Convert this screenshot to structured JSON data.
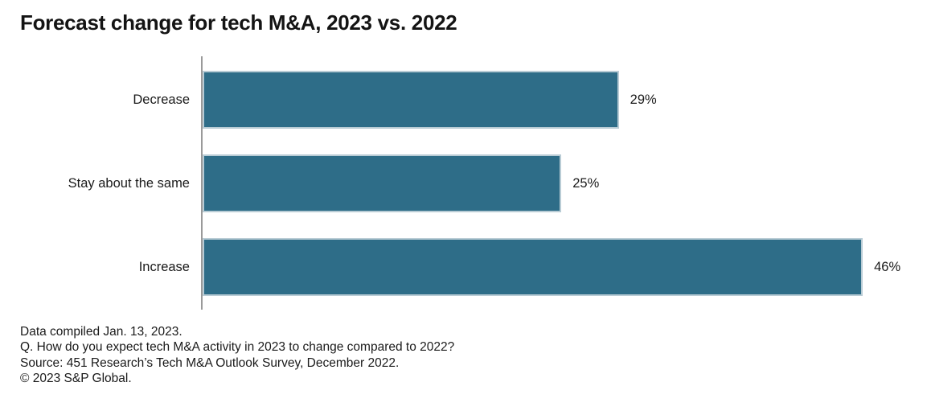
{
  "chart": {
    "title": "Forecast change for tech M&A, 2023 vs. 2022"
  },
  "chart_data": {
    "type": "bar",
    "orientation": "horizontal",
    "title": "Forecast change for tech M&A, 2023 vs. 2022",
    "categories": [
      "Decrease",
      "Stay about the same",
      "Increase"
    ],
    "values": [
      29,
      25,
      46
    ],
    "value_labels": [
      "29%",
      "25%",
      "46%"
    ],
    "xlabel": "",
    "ylabel": "",
    "xlim": [
      0,
      100
    ],
    "grid": false,
    "legend": false,
    "bar_color": "#2e6d88",
    "bar_border_color": "#b9ccd5",
    "axis_line_color": "#9a9a9a"
  },
  "footer": {
    "lines": [
      "Data compiled Jan. 13, 2023.",
      "Q. How do you expect tech M&A activity in 2023 to change compared to 2022?",
      "Source: 451 Research’s Tech M&A Outlook Survey, December 2022.",
      "© 2023 S&P Global."
    ]
  }
}
